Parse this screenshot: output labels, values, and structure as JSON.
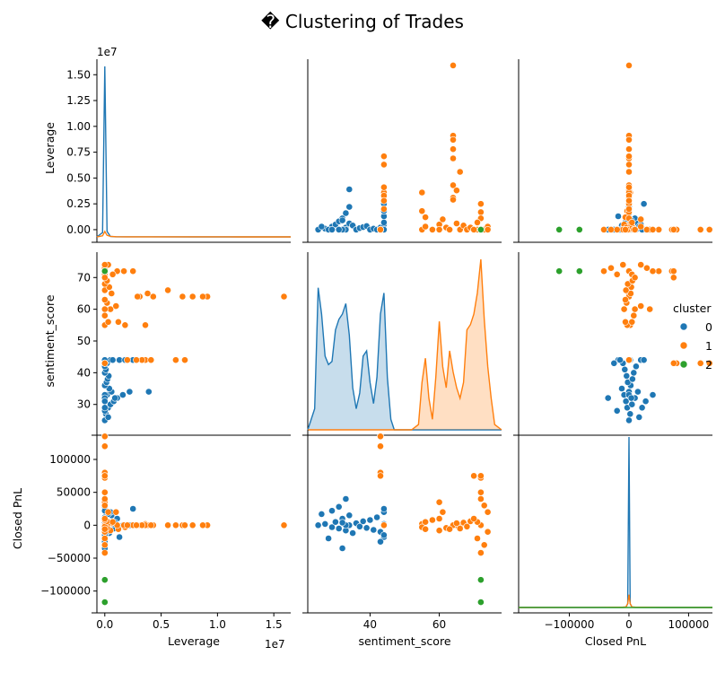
{
  "chart_data": {
    "type": "pairplot",
    "title": "� Clustering of Trades",
    "variables": [
      "Leverage",
      "sentiment_score",
      "Closed PnL"
    ],
    "offset_text": {
      "Leverage": "1e7"
    },
    "legend": {
      "title": "cluster",
      "placement": "right",
      "entries": [
        {
          "label": "0",
          "color": "#1f77b4"
        },
        {
          "label": "1",
          "color": "#ff7f0e"
        },
        {
          "label": "2",
          "color": "#2ca02c"
        }
      ]
    },
    "axes": {
      "Leverage": {
        "range": [
          -700000,
          16500000
        ],
        "ticks": [
          0,
          2500000,
          5000000,
          7500000,
          10000000,
          12500000,
          15000000
        ],
        "tick_labels": [
          "0.0",
          "0.25",
          "0.50",
          "0.75",
          "1.00",
          "1.25",
          "1.50"
        ],
        "y_tick_labels": [
          "0.00",
          "0.25",
          "0.50",
          "0.75",
          "1.00",
          "1.25",
          "1.50"
        ]
      },
      "Leverage_x": {
        "ticks": [
          0,
          5000000,
          10000000,
          15000000
        ],
        "tick_labels": [
          "0.0",
          "0.5",
          "1.0",
          "1.5"
        ]
      },
      "sentiment_score": {
        "range": [
          22,
          78
        ],
        "ticks": [
          30,
          40,
          50,
          60,
          70
        ],
        "tick_labels": [
          "30",
          "40",
          "50",
          "60",
          "70"
        ],
        "x_ticks": [
          40,
          60
        ],
        "x_tick_labels": [
          "40",
          "60"
        ]
      },
      "Closed PnL": {
        "range": [
          -125000,
          145000
        ],
        "ticks": [
          -100000,
          -50000,
          0,
          50000,
          100000
        ],
        "tick_labels": [
          "−100000",
          "−50000",
          "0",
          "50000",
          "100000"
        ],
        "x_range": [
          -185000,
          140000
        ],
        "x_ticks": [
          -100000,
          0,
          100000
        ],
        "x_tick_labels": [
          "−100000",
          "0",
          "100000"
        ]
      }
    },
    "points": [
      {
        "c": 0,
        "lev": 0,
        "sent": 25,
        "pnl": 0
      },
      {
        "c": 0,
        "lev": 100000,
        "sent": 27,
        "pnl": 2000
      },
      {
        "c": 0,
        "lev": 300000,
        "sent": 29,
        "pnl": -3000
      },
      {
        "c": 0,
        "lev": 500000,
        "sent": 30,
        "pnl": 5000
      },
      {
        "c": 0,
        "lev": 800000,
        "sent": 31,
        "pnl": -5000
      },
      {
        "c": 0,
        "lev": 1100000,
        "sent": 32,
        "pnl": 10000
      },
      {
        "c": 0,
        "lev": 200000,
        "sent": 33,
        "pnl": -8000
      },
      {
        "c": 0,
        "lev": 600000,
        "sent": 34,
        "pnl": 15000
      },
      {
        "c": 0,
        "lev": 400000,
        "sent": 35,
        "pnl": -12000
      },
      {
        "c": 0,
        "lev": 3900000,
        "sent": 34,
        "pnl": 0
      },
      {
        "c": 0,
        "lev": 2200000,
        "sent": 34,
        "pnl": 0
      },
      {
        "c": 0,
        "lev": 1600000,
        "sent": 33,
        "pnl": 0
      },
      {
        "c": 0,
        "lev": 900000,
        "sent": 32,
        "pnl": 4000
      },
      {
        "c": 0,
        "lev": 0,
        "sent": 33,
        "pnl": 40000
      },
      {
        "c": 0,
        "lev": 0,
        "sent": 32,
        "pnl": -35000
      },
      {
        "c": 0,
        "lev": 0,
        "sent": 36,
        "pnl": 3000
      },
      {
        "c": 0,
        "lev": 150000,
        "sent": 37,
        "pnl": -2000
      },
      {
        "c": 0,
        "lev": 250000,
        "sent": 38,
        "pnl": 6000
      },
      {
        "c": 0,
        "lev": 350000,
        "sent": 39,
        "pnl": -4000
      },
      {
        "c": 0,
        "lev": 0,
        "sent": 40,
        "pnl": 8000
      },
      {
        "c": 0,
        "lev": 100000,
        "sent": 41,
        "pnl": -7000
      },
      {
        "c": 0,
        "lev": 0,
        "sent": 42,
        "pnl": 12000
      },
      {
        "c": 0,
        "lev": 200000,
        "sent": 43,
        "pnl": -10000
      },
      {
        "c": 0,
        "lev": 500000,
        "sent": 44,
        "pnl": 20000
      },
      {
        "c": 0,
        "lev": 1300000,
        "sent": 44,
        "pnl": -18000
      },
      {
        "c": 0,
        "lev": 2500000,
        "sent": 44,
        "pnl": 25000
      },
      {
        "c": 0,
        "lev": 1800000,
        "sent": 44,
        "pnl": 0
      },
      {
        "c": 0,
        "lev": 700000,
        "sent": 44,
        "pnl": 2000
      },
      {
        "c": 0,
        "lev": 0,
        "sent": 44,
        "pnl": -15000
      },
      {
        "c": 0,
        "lev": 300000,
        "sent": 26,
        "pnl": 17000
      },
      {
        "c": 0,
        "lev": 0,
        "sent": 28,
        "pnl": -20000
      },
      {
        "c": 0,
        "lev": 0,
        "sent": 31,
        "pnl": 28000
      },
      {
        "c": 0,
        "lev": 0,
        "sent": 43,
        "pnl": -25000
      },
      {
        "c": 0,
        "lev": 0,
        "sent": 29,
        "pnl": 22000
      },
      {
        "c": 1,
        "lev": 0,
        "sent": 55,
        "pnl": 0
      },
      {
        "c": 1,
        "lev": 3600000,
        "sent": 55,
        "pnl": 2000
      },
      {
        "c": 1,
        "lev": 1800000,
        "sent": 55,
        "pnl": -3000
      },
      {
        "c": 1,
        "lev": 300000,
        "sent": 56,
        "pnl": 5000
      },
      {
        "c": 1,
        "lev": 1200000,
        "sent": 56,
        "pnl": -6000
      },
      {
        "c": 1,
        "lev": 0,
        "sent": 60,
        "pnl": 10000
      },
      {
        "c": 1,
        "lev": 500000,
        "sent": 60,
        "pnl": -8000
      },
      {
        "c": 1,
        "lev": 1000000,
        "sent": 61,
        "pnl": 20000
      },
      {
        "c": 1,
        "lev": 200000,
        "sent": 62,
        "pnl": -4000
      },
      {
        "c": 1,
        "lev": 0,
        "sent": 60,
        "pnl": 35000
      },
      {
        "c": 1,
        "lev": 15900000,
        "sent": 64,
        "pnl": 0
      },
      {
        "c": 1,
        "lev": 9100000,
        "sent": 64,
        "pnl": 0
      },
      {
        "c": 1,
        "lev": 8700000,
        "sent": 64,
        "pnl": 0
      },
      {
        "c": 1,
        "lev": 7800000,
        "sent": 64,
        "pnl": 0
      },
      {
        "c": 1,
        "lev": 6900000,
        "sent": 64,
        "pnl": 0
      },
      {
        "c": 1,
        "lev": 5600000,
        "sent": 66,
        "pnl": 0
      },
      {
        "c": 1,
        "lev": 4300000,
        "sent": 64,
        "pnl": 0
      },
      {
        "c": 1,
        "lev": 3800000,
        "sent": 65,
        "pnl": 0
      },
      {
        "c": 1,
        "lev": 3100000,
        "sent": 64,
        "pnl": 0
      },
      {
        "c": 1,
        "lev": 2900000,
        "sent": 64,
        "pnl": 0
      },
      {
        "c": 1,
        "lev": 600000,
        "sent": 65,
        "pnl": 3000
      },
      {
        "c": 1,
        "lev": 0,
        "sent": 66,
        "pnl": -5000
      },
      {
        "c": 1,
        "lev": 400000,
        "sent": 67,
        "pnl": 4000
      },
      {
        "c": 1,
        "lev": 0,
        "sent": 68,
        "pnl": -2000
      },
      {
        "c": 1,
        "lev": 200000,
        "sent": 69,
        "pnl": 6000
      },
      {
        "c": 1,
        "lev": 2500000,
        "sent": 72,
        "pnl": 0
      },
      {
        "c": 1,
        "lev": 1700000,
        "sent": 72,
        "pnl": 0
      },
      {
        "c": 1,
        "lev": 1100000,
        "sent": 72,
        "pnl": 0
      },
      {
        "c": 1,
        "lev": 700000,
        "sent": 71,
        "pnl": 5000
      },
      {
        "c": 1,
        "lev": 0,
        "sent": 70,
        "pnl": 75000
      },
      {
        "c": 1,
        "lev": 0,
        "sent": 72,
        "pnl": 72000
      },
      {
        "c": 1,
        "lev": 0,
        "sent": 72,
        "pnl": 50000
      },
      {
        "c": 1,
        "lev": 0,
        "sent": 72,
        "pnl": -42000
      },
      {
        "c": 1,
        "lev": 0,
        "sent": 73,
        "pnl": 30000
      },
      {
        "c": 1,
        "lev": 0,
        "sent": 73,
        "pnl": -30000
      },
      {
        "c": 1,
        "lev": 300000,
        "sent": 74,
        "pnl": 20000
      },
      {
        "c": 1,
        "lev": 0,
        "sent": 74,
        "pnl": -10000
      },
      {
        "c": 1,
        "lev": 0,
        "sent": 71,
        "pnl": -20000
      },
      {
        "c": 1,
        "lev": 0,
        "sent": 43,
        "pnl": 135000
      },
      {
        "c": 1,
        "lev": 0,
        "sent": 43,
        "pnl": 80000
      },
      {
        "c": 1,
        "lev": 0,
        "sent": 43,
        "pnl": 75000
      },
      {
        "c": 1,
        "lev": 7100000,
        "sent": 44,
        "pnl": 0
      },
      {
        "c": 1,
        "lev": 6300000,
        "sent": 44,
        "pnl": 0
      },
      {
        "c": 1,
        "lev": 3600000,
        "sent": 44,
        "pnl": 0
      },
      {
        "c": 1,
        "lev": 4100000,
        "sent": 44,
        "pnl": 0
      },
      {
        "c": 1,
        "lev": 3300000,
        "sent": 44,
        "pnl": 0
      },
      {
        "c": 1,
        "lev": 2800000,
        "sent": 44,
        "pnl": 0
      },
      {
        "c": 1,
        "lev": 2000000,
        "sent": 44,
        "pnl": 0
      },
      {
        "c": 1,
        "lev": 0,
        "sent": 58,
        "pnl": 8000
      },
      {
        "c": 1,
        "lev": 0,
        "sent": 63,
        "pnl": -6000
      },
      {
        "c": 1,
        "lev": 0,
        "sent": 70,
        "pnl": 10000
      },
      {
        "c": 1,
        "lev": 0,
        "sent": 72,
        "pnl": 75000
      },
      {
        "c": 1,
        "lev": 0,
        "sent": 72,
        "pnl": 40000
      },
      {
        "c": 1,
        "lev": 0,
        "sent": 43,
        "pnl": 120000
      },
      {
        "c": 2,
        "lev": 0,
        "sent": 72,
        "pnl": -83000
      },
      {
        "c": 2,
        "lev": 0,
        "sent": 72,
        "pnl": -117000
      }
    ],
    "kde": {
      "Leverage": {
        "grid": [
          -700000,
          -200000,
          0,
          200000,
          500000,
          1000000,
          2000000,
          4000000,
          8000000,
          12000000,
          16500000
        ],
        "series": [
          {
            "cluster": "0",
            "values": [
              0,
              0.4,
              15.7,
              0.5,
              0.04,
              0.01,
              0.01,
              0.005,
              0,
              0,
              0
            ]
          },
          {
            "cluster": "1",
            "values": [
              0,
              0.1,
              0.5,
              0.15,
              0.05,
              0.02,
              0.01,
              0.01,
              0.005,
              0.003,
              0
            ]
          }
        ]
      },
      "sentiment_score": {
        "grid": [
          22,
          24,
          25,
          26,
          27,
          28,
          29,
          30,
          31,
          32,
          33,
          34,
          35,
          36,
          37,
          38,
          39,
          40,
          41,
          42,
          43,
          44,
          45,
          46,
          47,
          48,
          50,
          52,
          54,
          55,
          56,
          57,
          58,
          59,
          60,
          61,
          62,
          63,
          64,
          65,
          66,
          67,
          68,
          69,
          70,
          71,
          72,
          73,
          74,
          75,
          76,
          78
        ],
        "series": [
          {
            "cluster": "0",
            "values": [
              0,
              0.2,
              1.35,
              1.1,
              0.7,
              0.62,
              0.65,
              0.95,
              1.05,
              1.1,
              1.2,
              0.9,
              0.4,
              0.2,
              0.35,
              0.7,
              0.75,
              0.45,
              0.25,
              0.5,
              1.1,
              1.3,
              0.5,
              0.1,
              0,
              0,
              0,
              0,
              0,
              0,
              0,
              0,
              0,
              0,
              0,
              0,
              0,
              0,
              0,
              0,
              0,
              0,
              0,
              0,
              0,
              0,
              0,
              0,
              0,
              0,
              0,
              0
            ]
          },
          {
            "cluster": "1",
            "values": [
              0,
              0,
              0,
              0,
              0,
              0,
              0,
              0,
              0,
              0,
              0,
              0,
              0,
              0,
              0,
              0,
              0,
              0,
              0,
              0,
              0,
              0,
              0,
              0,
              0,
              0,
              0,
              0,
              0.05,
              0.45,
              0.68,
              0.3,
              0.1,
              0.5,
              1.03,
              0.6,
              0.4,
              0.75,
              0.55,
              0.4,
              0.3,
              0.45,
              0.95,
              1.0,
              1.1,
              1.3,
              1.62,
              1.05,
              0.6,
              0.3,
              0.05,
              0
            ]
          }
        ]
      },
      "Closed PnL": {
        "grid": [
          -185000,
          -60000,
          -10000,
          -5000,
          -2000,
          0,
          2000,
          5000,
          10000,
          60000,
          140000
        ],
        "series": [
          {
            "cluster": "0",
            "values": [
              0,
              0,
              0.01,
              0.02,
              0.3,
              13.3,
              0.3,
              0.02,
              0.01,
              0,
              0
            ]
          },
          {
            "cluster": "1",
            "values": [
              0,
              0.01,
              0.03,
              0.05,
              0.3,
              1.0,
              0.3,
              0.05,
              0.03,
              0.01,
              0
            ]
          },
          {
            "cluster": "2",
            "values": [
              0.006,
              0.006,
              0.003,
              0,
              0,
              0,
              0,
              0,
              0,
              0,
              0
            ]
          }
        ]
      }
    }
  }
}
